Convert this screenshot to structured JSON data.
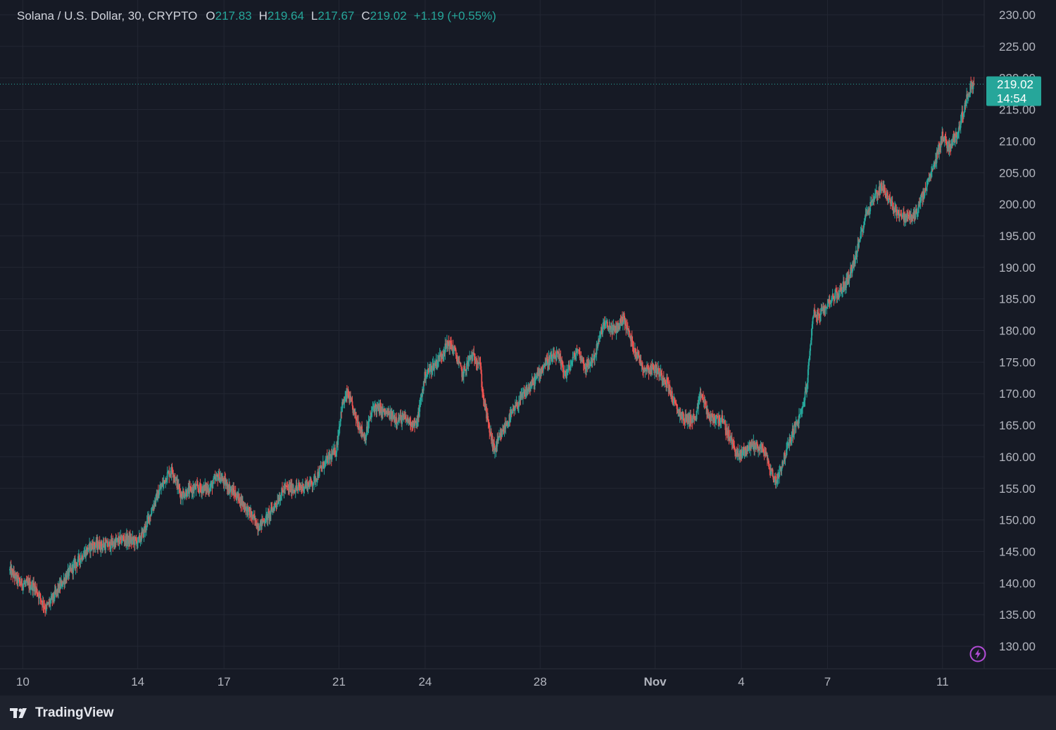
{
  "legend": {
    "symbol": "Solana / U.S. Dollar, 30, CRYPTO",
    "open_label": "O",
    "open": "217.83",
    "high_label": "H",
    "high": "219.64",
    "low_label": "L",
    "low": "217.67",
    "close_label": "C",
    "close": "219.02",
    "change": "+1.19 (+0.55%)"
  },
  "price_tag": {
    "price": "219.02",
    "countdown": "14:54"
  },
  "brand": {
    "name": "TradingView"
  },
  "icons": {
    "brand_logo": "tradingview-logo-icon",
    "bolt": "lightning-bolt-icon"
  },
  "colors": {
    "background": "#161a25",
    "grid": "#232733",
    "up": "#26a69a",
    "down": "#ef5350",
    "axis_text": "#b2b5be",
    "accent_purple": "#b24bd6"
  },
  "chart_data": {
    "type": "candlestick",
    "interval": "30",
    "series_name": "Solana / U.S. Dollar",
    "y_axis": {
      "ticks": [
        "130.00",
        "135.00",
        "140.00",
        "145.00",
        "150.00",
        "155.00",
        "160.00",
        "165.00",
        "170.00",
        "175.00",
        "180.00",
        "185.00",
        "190.00",
        "195.00",
        "200.00",
        "205.00",
        "210.00",
        "215.00",
        "220.00",
        "225.00",
        "230.00"
      ],
      "range": [
        127,
        232
      ]
    },
    "x_axis": {
      "ticks": [
        {
          "label": "10",
          "day": 0
        },
        {
          "label": "14",
          "day": 4
        },
        {
          "label": "17",
          "day": 7
        },
        {
          "label": "21",
          "day": 11
        },
        {
          "label": "24",
          "day": 14
        },
        {
          "label": "28",
          "day": 18
        },
        {
          "label": "Nov",
          "day": 22
        },
        {
          "label": "4",
          "day": 25
        },
        {
          "label": "7",
          "day": 28
        },
        {
          "label": "11",
          "day": 32
        }
      ],
      "range_days": [
        -0.45,
        33.45
      ]
    },
    "last_price": 219.02,
    "price_path": [
      [
        -0.45,
        142
      ],
      [
        -0.1,
        140
      ],
      [
        0.4,
        139.5
      ],
      [
        0.8,
        136
      ],
      [
        1.1,
        138
      ],
      [
        1.5,
        141
      ],
      [
        2.0,
        144
      ],
      [
        2.4,
        146
      ],
      [
        3.0,
        146
      ],
      [
        3.5,
        147
      ],
      [
        4.0,
        146.5
      ],
      [
        4.2,
        148
      ],
      [
        4.6,
        153
      ],
      [
        5.0,
        157
      ],
      [
        5.2,
        158
      ],
      [
        5.5,
        154
      ],
      [
        6.0,
        155
      ],
      [
        6.5,
        155
      ],
      [
        6.8,
        157
      ],
      [
        7.2,
        155
      ],
      [
        7.6,
        153
      ],
      [
        7.9,
        151
      ],
      [
        8.2,
        149
      ],
      [
        8.6,
        151
      ],
      [
        9.1,
        155
      ],
      [
        9.6,
        155
      ],
      [
        10.1,
        156
      ],
      [
        10.5,
        159
      ],
      [
        10.9,
        161
      ],
      [
        11.1,
        168
      ],
      [
        11.3,
        170
      ],
      [
        11.6,
        166
      ],
      [
        11.9,
        163
      ],
      [
        12.2,
        168
      ],
      [
        12.6,
        167
      ],
      [
        13.0,
        166
      ],
      [
        13.3,
        166
      ],
      [
        13.7,
        165
      ],
      [
        14.0,
        173
      ],
      [
        14.4,
        175
      ],
      [
        14.8,
        178
      ],
      [
        15.0,
        177
      ],
      [
        15.3,
        173
      ],
      [
        15.6,
        176
      ],
      [
        15.9,
        175
      ],
      [
        16.0,
        170
      ],
      [
        16.2,
        165
      ],
      [
        16.4,
        161
      ],
      [
        16.8,
        165
      ],
      [
        17.3,
        169
      ],
      [
        17.8,
        172
      ],
      [
        18.2,
        175
      ],
      [
        18.6,
        176
      ],
      [
        18.9,
        173
      ],
      [
        19.3,
        177
      ],
      [
        19.6,
        174
      ],
      [
        19.9,
        176
      ],
      [
        20.2,
        181
      ],
      [
        20.6,
        180
      ],
      [
        20.9,
        182
      ],
      [
        21.2,
        178
      ],
      [
        21.6,
        174
      ],
      [
        22.0,
        174
      ],
      [
        22.4,
        172
      ],
      [
        22.7,
        168
      ],
      [
        23.0,
        166
      ],
      [
        23.4,
        166
      ],
      [
        23.6,
        170
      ],
      [
        23.9,
        166
      ],
      [
        24.3,
        166
      ],
      [
        24.6,
        163
      ],
      [
        24.9,
        160
      ],
      [
        25.1,
        161
      ],
      [
        25.4,
        162
      ],
      [
        25.8,
        161
      ],
      [
        26.0,
        158
      ],
      [
        26.2,
        156
      ],
      [
        26.5,
        160
      ],
      [
        26.8,
        164
      ],
      [
        27.1,
        167
      ],
      [
        27.3,
        172
      ],
      [
        27.5,
        183
      ],
      [
        27.7,
        182
      ],
      [
        28.1,
        185
      ],
      [
        28.4,
        186
      ],
      [
        28.7,
        188
      ],
      [
        29.0,
        192
      ],
      [
        29.3,
        198
      ],
      [
        29.6,
        201
      ],
      [
        29.9,
        203
      ],
      [
        30.2,
        200
      ],
      [
        30.6,
        198
      ],
      [
        31.0,
        198
      ],
      [
        31.3,
        201
      ],
      [
        31.7,
        206
      ],
      [
        32.0,
        211
      ],
      [
        32.2,
        209
      ],
      [
        32.5,
        211
      ],
      [
        32.8,
        216
      ],
      [
        33.0,
        219
      ],
      [
        33.1,
        219.02
      ]
    ]
  }
}
